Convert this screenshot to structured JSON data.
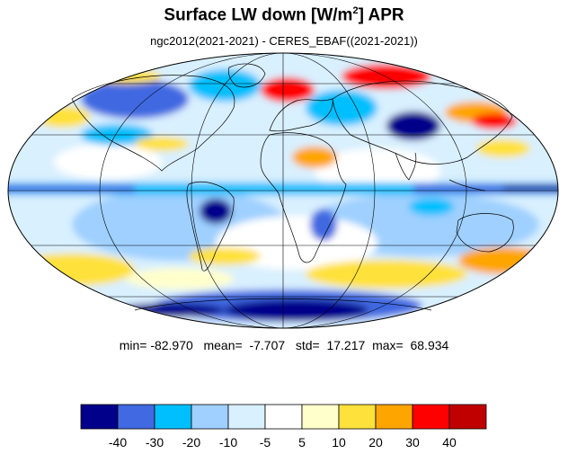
{
  "header": {
    "title_prefix": "Surface LW down [W/m",
    "title_sup": "2",
    "title_suffix": "]  APR",
    "subtitle": "ngc2012(2021-2021) - CERES_EBAF((2021-2021))"
  },
  "stats": {
    "min_label": "min=",
    "min": "-82.970",
    "mean_label": "mean=",
    "mean": "-7.707",
    "std_label": "std=",
    "std": "17.217",
    "max_label": "max=",
    "max": "68.934"
  },
  "map": {
    "projection": "mollweide",
    "gridlines": true
  },
  "colorbar": {
    "colors": [
      "#00008b",
      "#4169e1",
      "#00bfff",
      "#9fd0ff",
      "#d9f0ff",
      "#ffffff",
      "#ffffcc",
      "#ffe13b",
      "#ffa500",
      "#ff0000",
      "#c00000"
    ],
    "tick_labels": [
      "-40",
      "-30",
      "-20",
      "-10",
      "-5",
      "5",
      "10",
      "20",
      "30",
      "40"
    ]
  }
}
